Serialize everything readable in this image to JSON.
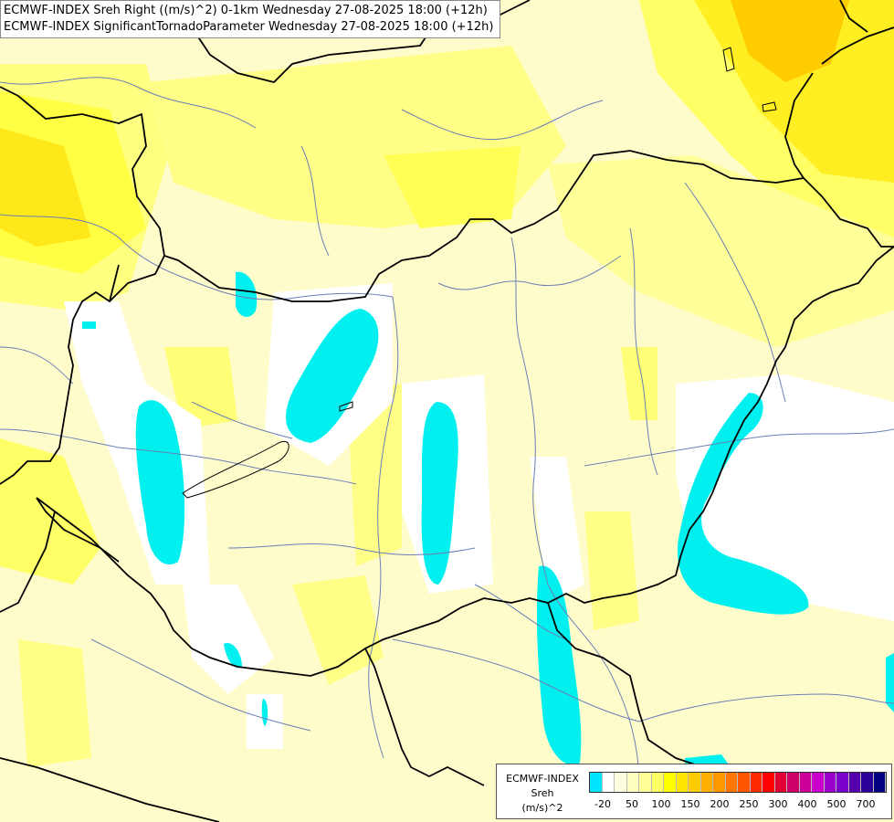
{
  "titles": {
    "line1": "ECMWF-INDEX Sreh Right ((m/s)^2) 0-1km Wednesday 27-08-2025 18:00 (+12h)",
    "line2": "ECMWF-INDEX SignificantTornadoParameter Wednesday 27-08-2025 18:00 (+12h)"
  },
  "legend": {
    "source": "ECMWF-INDEX",
    "parameter": "Sreh",
    "unit": "(m/s)^2",
    "colors": [
      "#00e5ff",
      "#ffffff",
      "#ffffe0",
      "#ffffbf",
      "#ffff99",
      "#ffff66",
      "#ffff00",
      "#ffe600",
      "#ffcc00",
      "#ffb000",
      "#ff9900",
      "#ff7700",
      "#ff5500",
      "#ff2a00",
      "#ff0000",
      "#e00033",
      "#cc0066",
      "#cc0099",
      "#cc00cc",
      "#9900cc",
      "#7a00cc",
      "#5500aa",
      "#2a0099",
      "#000080"
    ],
    "ticks": [
      "-20",
      "50",
      "100",
      "150",
      "200",
      "250",
      "300",
      "400",
      "500",
      "700"
    ]
  },
  "colors": {
    "base": "#ffffcc",
    "cyan": "#00f0f0",
    "yellow": "#ffff66",
    "orange": "#ffd700",
    "border": "#000000",
    "river": "#6a7fb5"
  }
}
